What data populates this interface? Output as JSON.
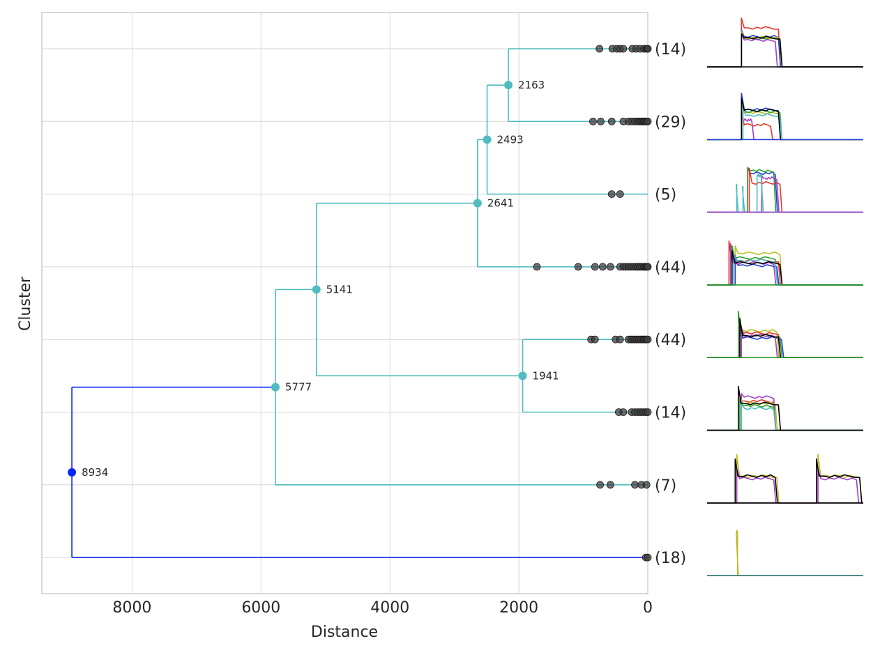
{
  "chart_data": {
    "type": "dendrogram",
    "title": "",
    "xlabel": "Distance",
    "ylabel": "Cluster",
    "x_reversed": true,
    "xlim": [
      9400,
      0
    ],
    "x_ticks": [
      8000,
      6000,
      4000,
      2000,
      0
    ],
    "x_tick_labels": [
      "8000",
      "6000",
      "4000",
      "2000",
      "0"
    ],
    "grid": true,
    "colors": {
      "root": "#0b24fb",
      "branch": "#4fbcbf",
      "points": "#3d3d3d",
      "grid": "#d6d6d6"
    },
    "leaves": [
      {
        "id": 0,
        "count_label": "(14)",
        "point_distances": [
          750,
          550,
          480,
          430,
          380,
          240,
          180,
          120,
          60,
          20,
          5,
          0
        ]
      },
      {
        "id": 1,
        "count_label": "(29)",
        "point_distances": [
          850,
          730,
          560,
          380,
          300,
          250,
          200,
          160,
          130,
          100,
          80,
          60,
          40,
          20,
          0
        ]
      },
      {
        "id": 2,
        "count_label": "(5)",
        "point_distances": [
          560,
          430
        ]
      },
      {
        "id": 3,
        "count_label": "(44)",
        "point_distances": [
          1720,
          1080,
          820,
          700,
          580,
          430,
          380,
          340,
          300,
          260,
          220,
          180,
          150,
          120,
          90,
          60,
          40,
          20,
          10,
          0
        ]
      },
      {
        "id": 4,
        "count_label": "(44)",
        "point_distances": [
          880,
          820,
          500,
          430,
          300,
          260,
          230,
          200,
          170,
          140,
          110,
          80,
          60,
          40,
          20,
          0
        ]
      },
      {
        "id": 5,
        "count_label": "(14)",
        "point_distances": [
          450,
          380,
          250,
          200,
          150,
          110,
          70,
          30,
          0
        ]
      },
      {
        "id": 6,
        "count_label": "(7)",
        "point_distances": [
          740,
          580,
          200,
          100,
          20
        ]
      },
      {
        "id": 7,
        "count_label": "(18)",
        "point_distances": [
          30,
          0
        ]
      }
    ],
    "nodes": [
      {
        "label": "2163",
        "distance": 2163,
        "children": [
          "leaf:0",
          "leaf:1"
        ],
        "color": "branch"
      },
      {
        "label": "2493",
        "distance": 2493,
        "children": [
          "node:2163",
          "leaf:2"
        ],
        "color": "branch"
      },
      {
        "label": "2641",
        "distance": 2641,
        "children": [
          "node:2493",
          "leaf:3"
        ],
        "color": "branch"
      },
      {
        "label": "1941",
        "distance": 1941,
        "children": [
          "leaf:4",
          "leaf:5"
        ],
        "color": "branch"
      },
      {
        "label": "5141",
        "distance": 5141,
        "children": [
          "node:2641",
          "node:1941"
        ],
        "color": "branch"
      },
      {
        "label": "5777",
        "distance": 5777,
        "children": [
          "node:5141",
          "leaf:6"
        ],
        "color": "branch"
      },
      {
        "label": "8934",
        "distance": 8934,
        "children": [
          "node:5777",
          "leaf:7"
        ],
        "color": "root"
      }
    ],
    "thumbnails": [
      {
        "leaf": 0,
        "traces": [
          {
            "color": "#e8372a",
            "start": 0.22,
            "end": 0.47,
            "level": 0.8,
            "peak": 1.0
          },
          {
            "color": "#2aa02b",
            "start": 0.22,
            "end": 0.48,
            "level": 0.58,
            "peak": 0.7
          },
          {
            "color": "#1f3fd8",
            "start": 0.22,
            "end": 0.47,
            "level": 0.62,
            "peak": 0.75
          },
          {
            "color": "#a03fc8",
            "start": 0.22,
            "end": 0.45,
            "level": 0.55,
            "peak": 0.66
          },
          {
            "color": "#bcbd22",
            "start": 0.22,
            "end": 0.48,
            "level": 0.6,
            "peak": 0.72
          },
          {
            "color": "#000000",
            "start": 0.22,
            "end": 0.48,
            "level": 0.6,
            "peak": 0.68
          }
        ],
        "baseline": "#000000"
      },
      {
        "leaf": 1,
        "traces": [
          {
            "color": "#1f3fd8",
            "start": 0.22,
            "end": 0.47,
            "level": 0.62,
            "peak": 0.95
          },
          {
            "color": "#e8372a",
            "start": 0.22,
            "end": 0.42,
            "level": 0.3,
            "peak": 0.6
          },
          {
            "color": "#a03fc8",
            "start": 0.22,
            "end": 0.3,
            "level": 0.4,
            "peak": 0.58
          },
          {
            "color": "#bcbd22",
            "start": 0.22,
            "end": 0.48,
            "level": 0.55,
            "peak": 0.7
          },
          {
            "color": "#2aa02b",
            "start": 0.22,
            "end": 0.48,
            "level": 0.58,
            "peak": 0.72
          },
          {
            "color": "#4fbcbf",
            "start": 0.23,
            "end": 0.48,
            "level": 0.5,
            "peak": 0.65
          },
          {
            "color": "#000000",
            "start": 0.22,
            "end": 0.47,
            "level": 0.6,
            "peak": 0.85
          }
        ],
        "baseline": "#1f3fd8"
      },
      {
        "leaf": 2,
        "traces": [
          {
            "color": "#4fbcbf",
            "start": 0.19,
            "end": 0.2,
            "level": 0.55,
            "peak": 0.55
          },
          {
            "color": "#4fbcbf",
            "start": 0.23,
            "end": 0.24,
            "level": 0.5,
            "peak": 0.5
          },
          {
            "color": "#1f3fd8",
            "start": 0.26,
            "end": 0.45,
            "level": 0.8,
            "peak": 0.9
          },
          {
            "color": "#2aa02b",
            "start": 0.26,
            "end": 0.44,
            "level": 0.85,
            "peak": 0.92
          },
          {
            "color": "#e8372a",
            "start": 0.27,
            "end": 0.48,
            "level": 0.6,
            "peak": 0.9
          },
          {
            "color": "#a03fc8",
            "start": 0.35,
            "end": 0.46,
            "level": 0.7,
            "peak": 0.75
          },
          {
            "color": "#4fbcbf",
            "start": 0.32,
            "end": 0.36,
            "level": 0.75,
            "peak": 0.75
          }
        ],
        "baseline": "#a03fc8"
      },
      {
        "leaf": 3,
        "traces": [
          {
            "color": "#e8372a",
            "start": 0.14,
            "end": 0.47,
            "level": 0.5,
            "peak": 0.9
          },
          {
            "color": "#2aa02b",
            "start": 0.16,
            "end": 0.45,
            "level": 0.55,
            "peak": 0.8
          },
          {
            "color": "#bcbd22",
            "start": 0.18,
            "end": 0.48,
            "level": 0.65,
            "peak": 0.8
          },
          {
            "color": "#1f3fd8",
            "start": 0.18,
            "end": 0.46,
            "level": 0.4,
            "peak": 0.6
          },
          {
            "color": "#a03fc8",
            "start": 0.15,
            "end": 0.44,
            "level": 0.45,
            "peak": 0.85
          },
          {
            "color": "#4fbcbf",
            "start": 0.17,
            "end": 0.45,
            "level": 0.5,
            "peak": 0.65
          },
          {
            "color": "#000000",
            "start": 0.16,
            "end": 0.48,
            "level": 0.45,
            "peak": 0.7
          }
        ],
        "baseline": "#2aa02b"
      },
      {
        "leaf": 4,
        "traces": [
          {
            "color": "#2aa02b",
            "start": 0.2,
            "end": 0.48,
            "level": 0.45,
            "peak": 0.95
          },
          {
            "color": "#1f3fd8",
            "start": 0.21,
            "end": 0.49,
            "level": 0.4,
            "peak": 0.7
          },
          {
            "color": "#bcbd22",
            "start": 0.21,
            "end": 0.46,
            "level": 0.55,
            "peak": 0.7
          },
          {
            "color": "#e8372a",
            "start": 0.21,
            "end": 0.47,
            "level": 0.5,
            "peak": 0.65
          },
          {
            "color": "#a03fc8",
            "start": 0.22,
            "end": 0.45,
            "level": 0.45,
            "peak": 0.6
          },
          {
            "color": "#000000",
            "start": 0.21,
            "end": 0.47,
            "level": 0.45,
            "peak": 0.8
          }
        ],
        "baseline": "#2aa02b"
      },
      {
        "leaf": 5,
        "traces": [
          {
            "color": "#e8372a",
            "start": 0.2,
            "end": 0.44,
            "level": 0.6,
            "peak": 0.85
          },
          {
            "color": "#a03fc8",
            "start": 0.22,
            "end": 0.44,
            "level": 0.68,
            "peak": 0.75
          },
          {
            "color": "#bcbd22",
            "start": 0.21,
            "end": 0.45,
            "level": 0.55,
            "peak": 0.7
          },
          {
            "color": "#2aa02b",
            "start": 0.21,
            "end": 0.44,
            "level": 0.5,
            "peak": 0.65
          },
          {
            "color": "#4fbcbf",
            "start": 0.22,
            "end": 0.44,
            "level": 0.45,
            "peak": 0.6
          },
          {
            "color": "#000000",
            "start": 0.2,
            "end": 0.47,
            "level": 0.55,
            "peak": 0.9
          }
        ],
        "baseline": "#000000"
      },
      {
        "leaf": 6,
        "traces": [
          {
            "color": "#bcbd22",
            "start": 0.19,
            "end": 0.46,
            "level": 0.55,
            "peak": 1.0
          },
          {
            "color": "#a03fc8",
            "start": 0.19,
            "end": 0.44,
            "level": 0.5,
            "peak": 0.7
          },
          {
            "color": "#000000",
            "start": 0.18,
            "end": 0.45,
            "level": 0.55,
            "peak": 0.9
          },
          {
            "color": "#bcbd22",
            "start": 0.71,
            "end": 0.99,
            "level": 0.55,
            "peak": 1.0
          },
          {
            "color": "#a03fc8",
            "start": 0.71,
            "end": 0.97,
            "level": 0.5,
            "peak": 0.7
          },
          {
            "color": "#000000",
            "start": 0.7,
            "end": 0.99,
            "level": 0.55,
            "peak": 0.9
          }
        ],
        "baseline": "#000000"
      },
      {
        "leaf": 7,
        "traces": [
          {
            "color": "#bcbd22",
            "start": 0.195,
            "end": 0.2,
            "level": 0.9,
            "peak": 0.9
          }
        ],
        "baseline": "#2c7a8a"
      }
    ]
  }
}
